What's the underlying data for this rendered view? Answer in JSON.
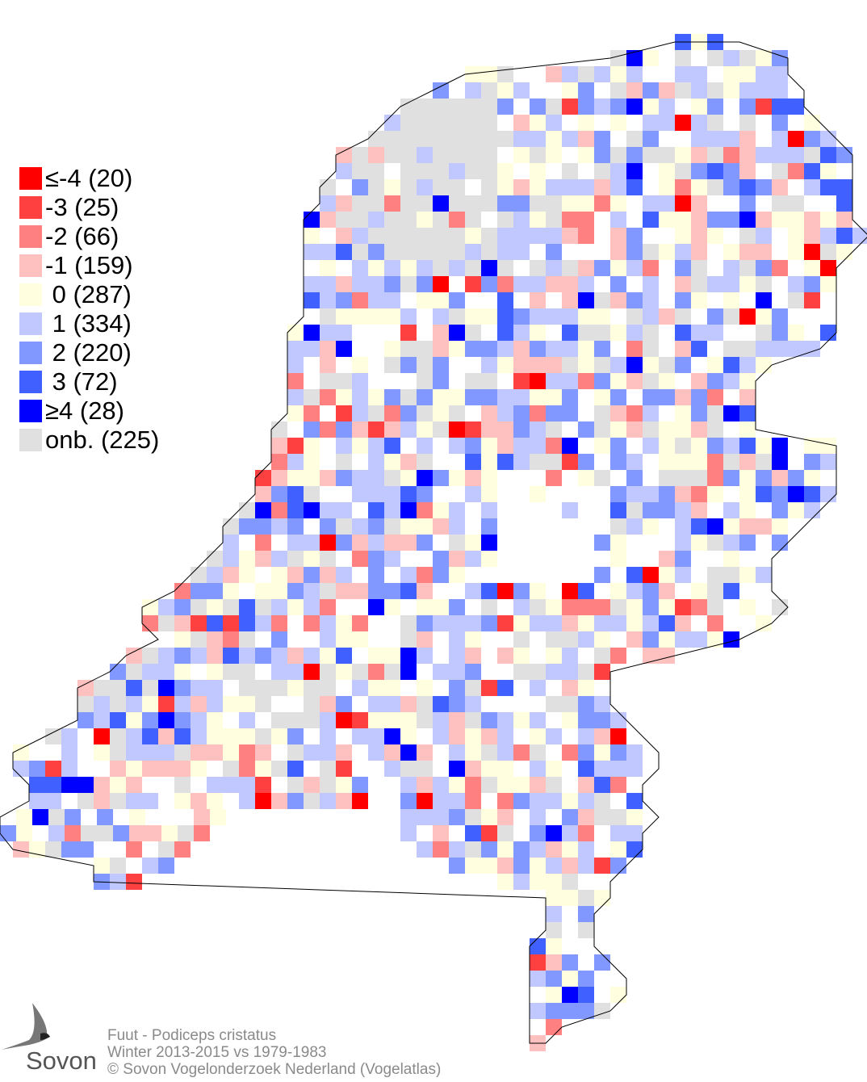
{
  "legend": {
    "items": [
      {
        "label": "≤-4 (20)",
        "color": "#ff0000"
      },
      {
        "label": "-3 (25)",
        "color": "#ff4040"
      },
      {
        "label": "-2 (66)",
        "color": "#ff8080"
      },
      {
        "label": "-1 (159)",
        "color": "#ffc0c0"
      },
      {
        "label": " 0 (287)",
        "color": "#ffffe0"
      },
      {
        "label": " 1 (334)",
        "color": "#c0c8ff"
      },
      {
        "label": " 2 (220)",
        "color": "#8098ff"
      },
      {
        "label": " 3 (72)",
        "color": "#4060ff"
      },
      {
        "label": "≥4 (28)",
        "color": "#0000ff"
      },
      {
        "label": "onb. (225)",
        "color": "#e0e0e0"
      }
    ]
  },
  "footer": {
    "species": "Fuut - Podiceps cristatus",
    "period": "Winter 2013-2015 vs 1979-1983",
    "copyright": "© Sovon Vogelonderzoek Nederland (Vogelatlas)"
  },
  "logo": {
    "text": "Sovon"
  }
}
